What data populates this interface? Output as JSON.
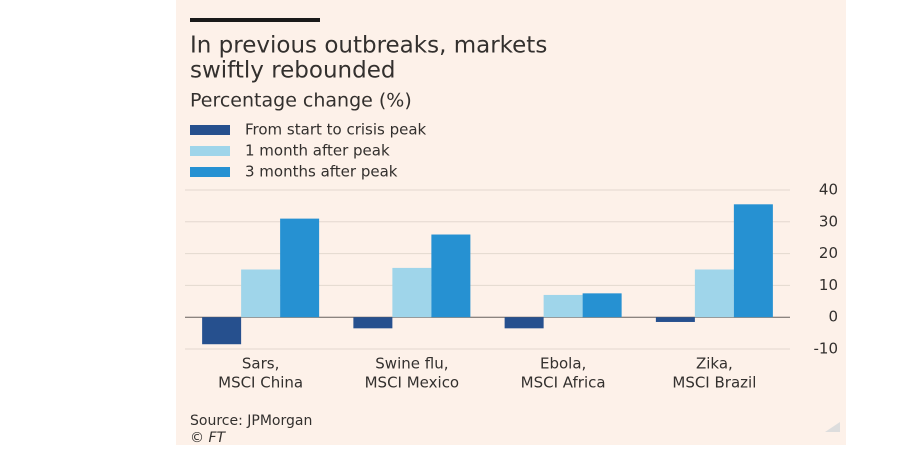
{
  "chart_data": {
    "type": "bar",
    "title": [
      "In previous outbreaks, markets",
      "swiftly rebounded"
    ],
    "subtitle": "Percentage change (%)",
    "categories": [
      [
        "Sars,",
        "MSCI China"
      ],
      [
        "Swine flu,",
        "MSCI Mexico"
      ],
      [
        "Ebola,",
        "MSCI Africa"
      ],
      [
        "Zika,",
        "MSCI Brazil"
      ]
    ],
    "series": [
      {
        "name": "From start to crisis peak",
        "color": "#26508e",
        "values": [
          -8.5,
          -3.5,
          -3.5,
          -1.5
        ]
      },
      {
        "name": "1 month after peak",
        "color": "#9fd5ea",
        "values": [
          15,
          15.5,
          7,
          15
        ]
      },
      {
        "name": "3 months after peak",
        "color": "#2691d2",
        "values": [
          31,
          26,
          7.5,
          35.5
        ]
      }
    ],
    "ylim": [
      -10,
      40
    ],
    "yticks": [
      -10,
      0,
      10,
      20,
      30,
      40
    ],
    "grid": true,
    "source": "Source: JPMorgan",
    "credit": "© FT"
  }
}
